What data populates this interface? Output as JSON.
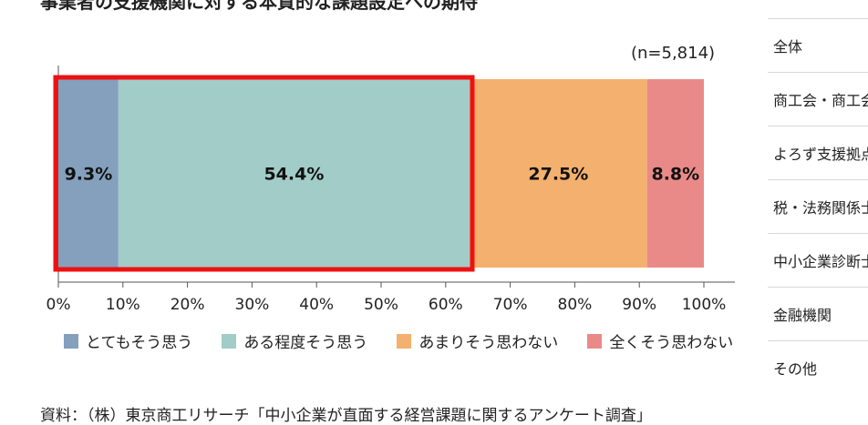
{
  "title": "事業者の支援機関に対する本質的な課題設定への期待",
  "sample_size": "(n=5,814)",
  "source": "資料：（株）東京商工リサーチ「中小企業が直面する経営課題に関するアンケート調査」",
  "sidebar": {
    "items": [
      {
        "label": "全体"
      },
      {
        "label": "商工会・商工会議所"
      },
      {
        "label": "よろず支援拠点"
      },
      {
        "label": "税・法務関係士業"
      },
      {
        "label": "中小企業診断士"
      },
      {
        "label": "金融機関"
      },
      {
        "label": "その他"
      }
    ]
  },
  "chart_data": {
    "type": "bar",
    "orientation": "horizontal",
    "stacked": true,
    "xlim": [
      0,
      100
    ],
    "x_ticks": [
      "0%",
      "10%",
      "20%",
      "30%",
      "40%",
      "50%",
      "60%",
      "70%",
      "80%",
      "90%",
      "100%"
    ],
    "series": [
      {
        "name": "とてもそう思う",
        "value": 9.3,
        "label": "9.3%",
        "color": "#84a0bd"
      },
      {
        "name": "ある程度そう思う",
        "value": 54.4,
        "label": "54.4%",
        "color": "#a2ccc7"
      },
      {
        "name": "あまりそう思わない",
        "value": 27.5,
        "label": "27.5%",
        "color": "#f4b06e"
      },
      {
        "name": "全くそう思わない",
        "value": 8.8,
        "label": "8.8%",
        "color": "#e98a88"
      }
    ],
    "highlight": {
      "from": 0,
      "to": 63.7,
      "color": "#ee1111"
    },
    "legend_position": "bottom"
  }
}
